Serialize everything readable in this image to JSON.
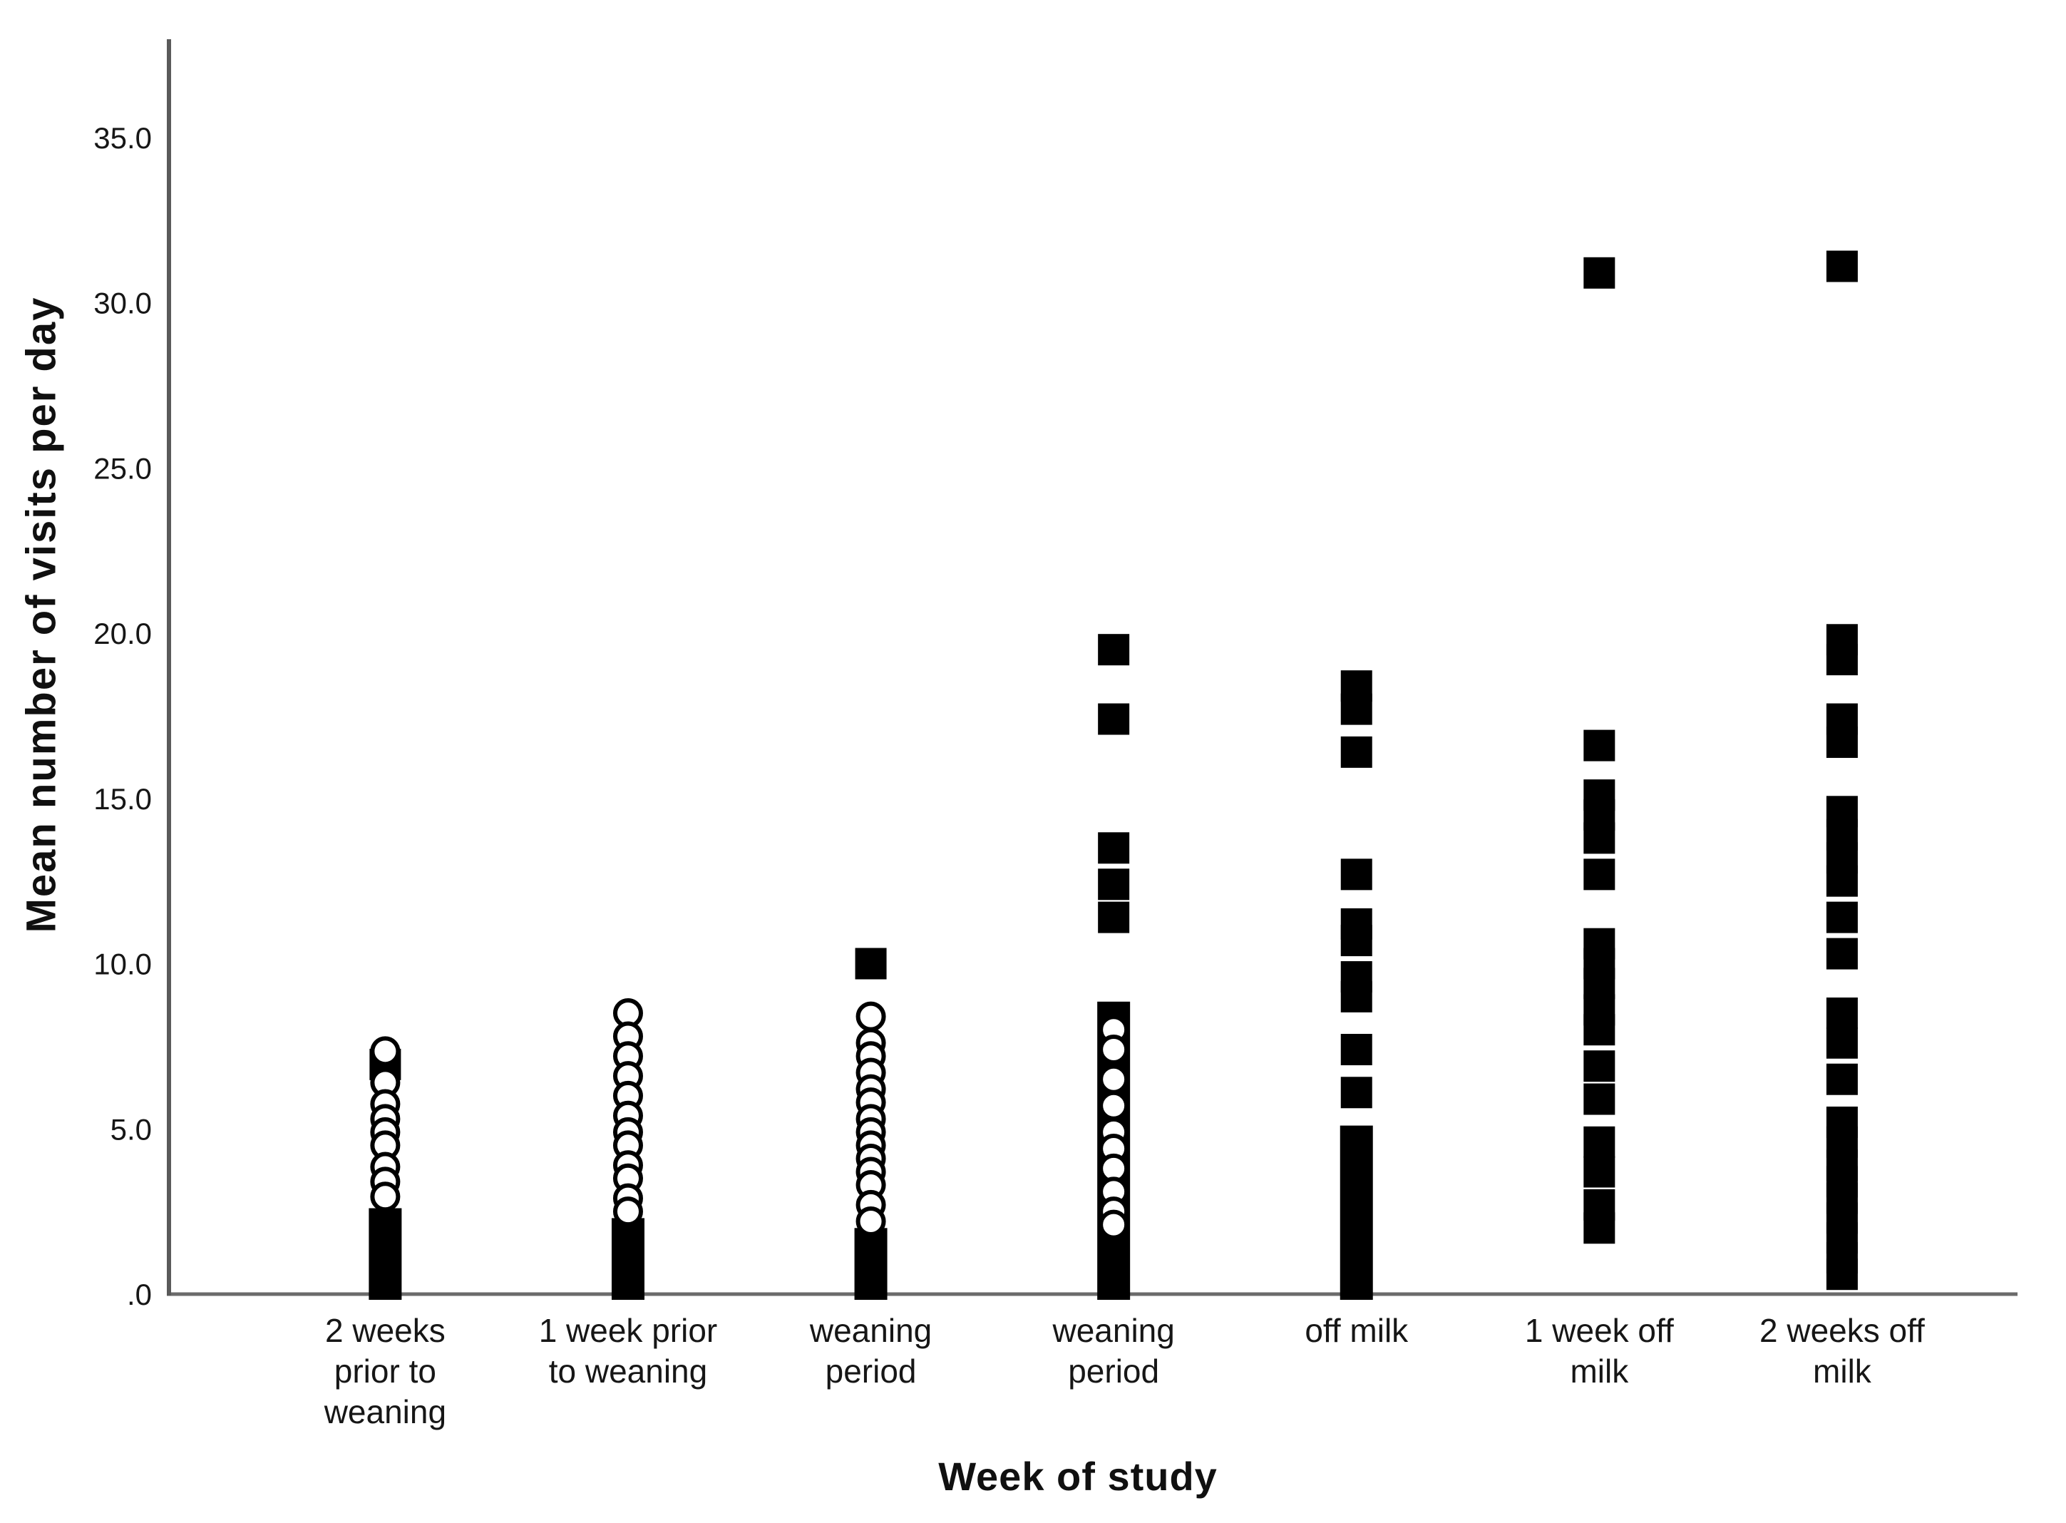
{
  "figure": {
    "background": "#ffffff",
    "x_axis_title": "Week of study",
    "y_axis_title": "Mean number of visits per day"
  },
  "colors": {
    "marker": "#000000",
    "marker_fill_open": "#ffffff",
    "y_axis_line": "#5a5a5a",
    "x_axis_line": "#6b6b6b",
    "text": "#161616"
  },
  "chart_data": {
    "type": "scatter",
    "title": "",
    "xlabel": "Week of study",
    "ylabel": "Mean number of visits per day",
    "ylim": [
      0,
      38
    ],
    "grid": false,
    "legend_position": "none",
    "yticks": [
      0,
      5,
      10,
      15,
      20,
      25,
      30,
      35
    ],
    "ytick_labels": [
      ".0",
      "5.0",
      "10.0",
      "15.0",
      "20.0",
      "25.0",
      "30.0",
      "35.0"
    ],
    "marker_styles": {
      "open_circles": "hollow circle, black outline, white fill",
      "filled_squares": "solid black square",
      "dense_bar": "solid black column of heavily overlapping markers spanning [min,max]"
    },
    "categories": [
      {
        "label": "2 weeks prior to weaning",
        "lines": [
          "2 weeks",
          "prior to",
          "weaning"
        ],
        "open_circles": [
          7.35,
          6.4,
          5.75,
          5.3,
          4.9,
          4.5,
          3.85,
          3.4,
          2.95
        ],
        "filled_squares": [
          6.95
        ],
        "dense_bar": [
          0,
          2.6
        ]
      },
      {
        "label": "1 week prior to weaning",
        "lines": [
          "1 week prior",
          "to weaning"
        ],
        "open_circles": [
          8.5,
          7.8,
          7.2,
          6.6,
          6.0,
          5.4,
          4.9,
          4.5,
          3.9,
          3.5,
          2.9,
          2.5
        ],
        "filled_squares": [],
        "dense_bar": [
          0,
          2.3
        ]
      },
      {
        "label": "weaning period",
        "lines": [
          "weaning",
          "period"
        ],
        "open_circles": [
          8.4,
          7.6,
          7.2,
          6.7,
          6.2,
          5.8,
          5.3,
          4.9,
          4.5,
          4.1,
          3.7,
          3.3,
          2.7,
          2.2
        ],
        "filled_squares": [
          10.0
        ],
        "dense_bar": [
          0,
          2.0
        ]
      },
      {
        "label": "weaning period",
        "lines": [
          "weaning",
          "period"
        ],
        "open_circles": [
          8.0,
          7.4,
          6.5,
          5.7,
          4.9,
          4.4,
          3.8,
          3.1,
          2.5,
          2.1
        ],
        "filled_squares": [
          19.5,
          17.4,
          13.5,
          12.4,
          11.4
        ],
        "dense_bar": [
          0,
          8.85
        ]
      },
      {
        "label": "off milk",
        "lines": [
          "off milk"
        ],
        "open_circles": [],
        "filled_squares": [
          18.4,
          17.7,
          16.4,
          12.7,
          11.2,
          10.7,
          9.6,
          9.0,
          7.4,
          6.1
        ],
        "dense_bar": [
          0,
          5.1
        ]
      },
      {
        "label": "1 week off milk",
        "lines": [
          "1 week off",
          "milk"
        ],
        "open_circles": [],
        "filled_squares": [
          30.9,
          16.6,
          15.1,
          14.5,
          13.8,
          12.7,
          10.6,
          10.0,
          9.4,
          8.6,
          8.0,
          6.9,
          5.9,
          4.6,
          3.7,
          2.7,
          2.0
        ],
        "dense_bar": null
      },
      {
        "label": "2 weeks off milk",
        "lines": [
          "2 weeks off",
          "milk"
        ],
        "open_circles": [],
        "filled_squares": [
          31.1,
          19.8,
          19.2,
          17.4,
          16.7,
          14.6,
          13.9,
          13.2,
          12.5,
          11.4,
          10.3,
          8.5,
          7.6,
          6.5,
          5.2,
          4.6,
          3.9,
          3.4,
          2.9,
          2.3,
          1.7,
          1.1,
          0.6
        ],
        "dense_bar": null
      }
    ]
  }
}
